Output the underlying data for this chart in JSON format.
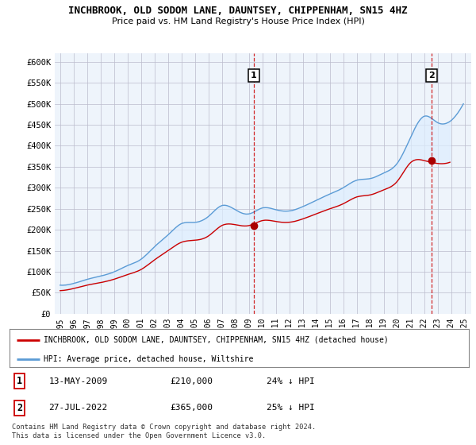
{
  "title": "INCHBROOK, OLD SODOM LANE, DAUNTSEY, CHIPPENHAM, SN15 4HZ",
  "subtitle": "Price paid vs. HM Land Registry's House Price Index (HPI)",
  "hpi_label": "HPI: Average price, detached house, Wiltshire",
  "property_label": "INCHBROOK, OLD SODOM LANE, DAUNTSEY, CHIPPENHAM, SN15 4HZ (detached house)",
  "legend_footnote": "Contains HM Land Registry data © Crown copyright and database right 2024.\nThis data is licensed under the Open Government Licence v3.0.",
  "annotation1": {
    "num": "1",
    "date": "13-MAY-2009",
    "price": "£210,000",
    "pct": "24% ↓ HPI"
  },
  "annotation2": {
    "num": "2",
    "date": "27-JUL-2022",
    "price": "£365,000",
    "pct": "25% ↓ HPI"
  },
  "hpi_color": "#5b9bd5",
  "hpi_fill_color": "#ddeeff",
  "property_color": "#cc0000",
  "vline_color": "#cc0000",
  "point_color": "#aa0000",
  "ylim": [
    0,
    620000
  ],
  "yticks": [
    0,
    50000,
    100000,
    150000,
    200000,
    250000,
    300000,
    350000,
    400000,
    450000,
    500000,
    550000,
    600000
  ],
  "ytick_labels": [
    "£0",
    "£50K",
    "£100K",
    "£150K",
    "£200K",
    "£250K",
    "£300K",
    "£350K",
    "£400K",
    "£450K",
    "£500K",
    "£550K",
    "£600K"
  ],
  "vline1_x": 2009.37,
  "vline2_x": 2022.58,
  "point1_x": 2009.37,
  "point1_y": 210000,
  "point2_x": 2022.58,
  "point2_y": 365000,
  "bg_color": "#ffffff",
  "chart_bg_color": "#eef4fb",
  "grid_color": "#bbbbcc",
  "xtick_years": [
    1995,
    1996,
    1997,
    1998,
    1999,
    2000,
    2001,
    2002,
    2003,
    2004,
    2005,
    2006,
    2007,
    2008,
    2009,
    2010,
    2011,
    2012,
    2013,
    2014,
    2015,
    2016,
    2017,
    2018,
    2019,
    2020,
    2021,
    2022,
    2023,
    2024,
    2025
  ]
}
